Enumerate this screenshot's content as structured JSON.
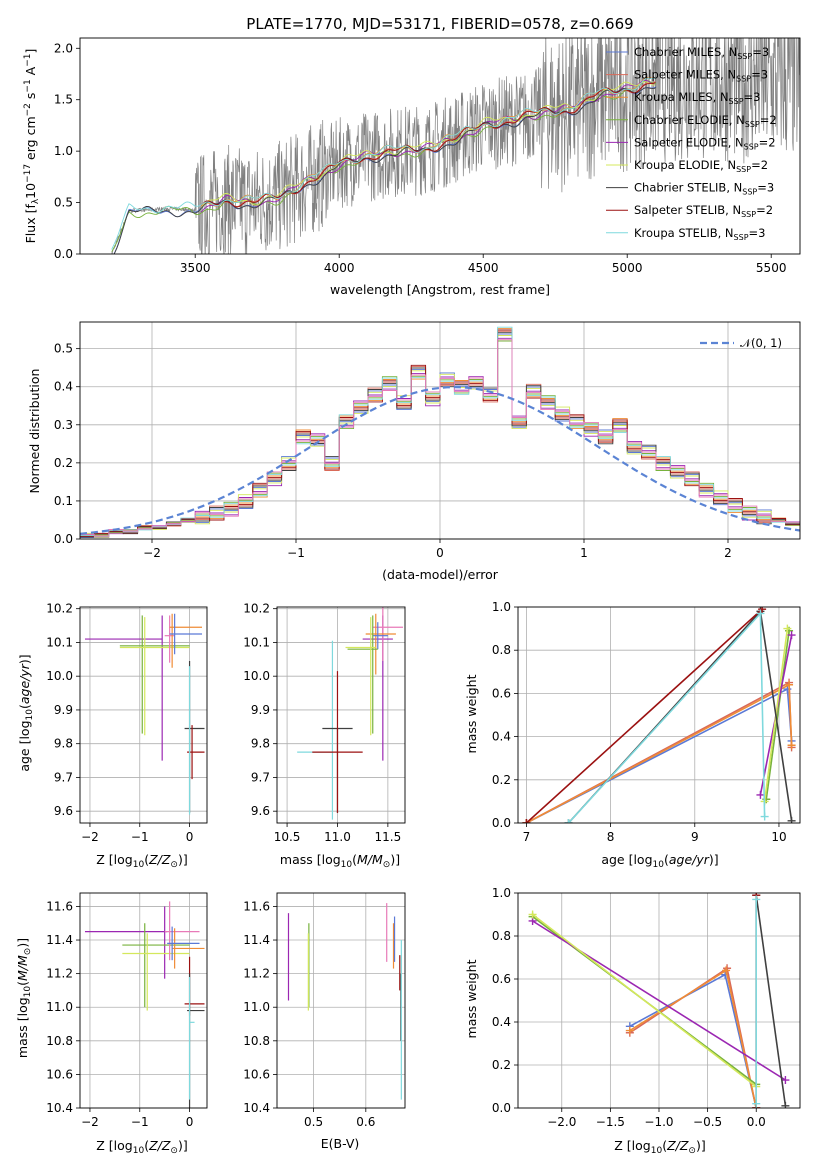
{
  "figure": {
    "title": "PLATE=1770, MJD=53171, FIBERID=0578, z=0.669"
  },
  "chart_data": [
    {
      "type": "line",
      "panel": "spectrum",
      "xlabel": "wavelength [Angstrom, rest frame]",
      "ylabel": "Flux [f_λ 10^-17 erg cm^-2 s^-1 A^-1]",
      "xlim": [
        3100,
        5600
      ],
      "ylim": [
        0,
        2.1
      ],
      "xticks": [
        "3500",
        "4000",
        "4500",
        "5000",
        "5500"
      ],
      "yticks": [
        "0.0",
        "0.5",
        "1.0",
        "1.5",
        "2.0"
      ],
      "grid": false,
      "legend_position": "top-right",
      "data_color": "#808080",
      "data_x_range": [
        3210,
        5600
      ],
      "model_trend": {
        "x": [
          3210,
          3270,
          3400,
          3500,
          3600,
          3700,
          3800,
          3900,
          3950,
          4000,
          4100,
          4200,
          4300,
          4400,
          4500,
          4600,
          4700,
          4800,
          4900,
          5000,
          5100
        ],
        "y": [
          0.0,
          0.42,
          0.44,
          0.43,
          0.52,
          0.5,
          0.56,
          0.72,
          0.78,
          0.88,
          0.95,
          1.0,
          1.02,
          1.12,
          1.25,
          1.3,
          1.38,
          1.4,
          1.55,
          1.6,
          1.68
        ]
      },
      "legend": [
        {
          "label": "Chabrier MILES, N",
          "sub": "SSP",
          "suffix": "=3",
          "color": "#5b79d6"
        },
        {
          "label": "Salpeter MILES, N",
          "sub": "SSP",
          "suffix": "=3",
          "color": "#d96a59"
        },
        {
          "label": "Kroupa MILES, N",
          "sub": "SSP",
          "suffix": "=3",
          "color": "#ef8c36"
        },
        {
          "label": "Chabrier ELODIE, N",
          "sub": "SSP",
          "suffix": "=2",
          "color": "#78b23d"
        },
        {
          "label": "Salpeter ELODIE, N",
          "sub": "SSP",
          "suffix": "=2",
          "color": "#9b27b2"
        },
        {
          "label": "Kroupa ELODIE, N",
          "sub": "SSP",
          "suffix": "=2",
          "color": "#d4e85c"
        },
        {
          "label": "Chabrier STELIB, N",
          "sub": "SSP",
          "suffix": "=3",
          "color": "#404040"
        },
        {
          "label": "Salpeter STELIB, N",
          "sub": "SSP",
          "suffix": "=2",
          "color": "#9b1111"
        },
        {
          "label": "Kroupa STELIB, N",
          "sub": "SSP",
          "suffix": "=3",
          "color": "#7fd9dd"
        }
      ]
    },
    {
      "type": "line",
      "panel": "residuals",
      "xlabel": "(data-model)/error",
      "ylabel": "Normed distribution",
      "xlim": [
        -2.5,
        2.5
      ],
      "ylim": [
        0,
        0.57
      ],
      "xticks": [
        "−2",
        "−1",
        "0",
        "1",
        "2"
      ],
      "yticks": [
        "0.0",
        "0.1",
        "0.2",
        "0.3",
        "0.4",
        "0.5"
      ],
      "grid": true,
      "legend_position": "top-right",
      "gaussian_label": "𝒩(0, 1)",
      "gaussian_color": "#5b84d4",
      "bin_edges": [
        -2.5,
        -2.4,
        -2.3,
        -2.2,
        -2.1,
        -2.0,
        -1.9,
        -1.8,
        -1.7,
        -1.6,
        -1.5,
        -1.4,
        -1.3,
        -1.2,
        -1.1,
        -1.0,
        -0.9,
        -0.8,
        -0.7,
        -0.6,
        -0.5,
        -0.4,
        -0.3,
        -0.2,
        -0.1,
        0.0,
        0.1,
        0.2,
        0.3,
        0.4,
        0.5,
        0.6,
        0.7,
        0.8,
        0.9,
        1.0,
        1.1,
        1.2,
        1.3,
        1.4,
        1.5,
        1.6,
        1.7,
        1.8,
        1.9,
        2.0,
        2.1,
        2.2,
        2.3,
        2.4,
        2.5
      ],
      "histogram": [
        0.01,
        0.01,
        0.02,
        0.02,
        0.03,
        0.03,
        0.04,
        0.05,
        0.06,
        0.07,
        0.08,
        0.1,
        0.13,
        0.16,
        0.2,
        0.27,
        0.26,
        0.2,
        0.31,
        0.35,
        0.38,
        0.41,
        0.36,
        0.44,
        0.37,
        0.42,
        0.4,
        0.41,
        0.38,
        0.54,
        0.31,
        0.39,
        0.36,
        0.33,
        0.31,
        0.29,
        0.27,
        0.3,
        0.24,
        0.23,
        0.2,
        0.18,
        0.16,
        0.13,
        0.11,
        0.09,
        0.07,
        0.06,
        0.05,
        0.04
      ],
      "series_colors": [
        "#5b79d6",
        "#d96a59",
        "#ef8c36",
        "#78b23d",
        "#9b27b2",
        "#d4e85c",
        "#404040",
        "#9b1111",
        "#7fd9dd",
        "#e87ab8"
      ]
    },
    {
      "type": "scatter",
      "panel": "age-vs-metallicity",
      "xlabel": "Z [log10(Z/Z⊙)]",
      "ylabel": "age [log10(age/yr)]",
      "xlim": [
        -2.2,
        0.35
      ],
      "ylim": [
        9.565,
        10.205
      ],
      "xticks": [
        "−2",
        "−1",
        "0"
      ],
      "yticks": [
        "9.6",
        "9.7",
        "9.8",
        "9.9",
        "10.0",
        "10.1",
        "10.2"
      ],
      "grid": true,
      "errorbars": [
        {
          "color": "#9b27b2",
          "x": -0.55,
          "xerr": [
            1.55,
            0.0
          ],
          "y": 10.11,
          "yerr": [
            0.36,
            0.07
          ]
        },
        {
          "color": "#78b23d",
          "x": -0.95,
          "xerr": [
            0.45,
            0.95
          ],
          "y": 10.09,
          "yerr": [
            0.26,
            0.09
          ]
        },
        {
          "color": "#d4e85c",
          "x": -0.9,
          "xerr": [
            0.5,
            0.9
          ],
          "y": 10.085,
          "yerr": [
            0.26,
            0.09
          ]
        },
        {
          "color": "#e87ab8",
          "x": -0.4,
          "xerr": [
            0.1,
            0.1
          ],
          "y": 10.12,
          "yerr": [
            0.08,
            0.06
          ]
        },
        {
          "color": "#ef8c36",
          "x": -0.35,
          "xerr": [
            0.05,
            0.6
          ],
          "y": 10.145,
          "yerr": [
            0.12,
            0.04
          ]
        },
        {
          "color": "#5b79d6",
          "x": -0.3,
          "xerr": [
            0.1,
            0.55
          ],
          "y": 10.125,
          "yerr": [
            0.06,
            0.06
          ]
        },
        {
          "color": "#404040",
          "x": 0.0,
          "xerr": [
            0.1,
            0.3
          ],
          "y": 9.845,
          "yerr": [
            0.25,
            0.2
          ]
        },
        {
          "color": "#9b1111",
          "x": 0.05,
          "xerr": [
            0.1,
            0.25
          ],
          "y": 9.775,
          "yerr": [
            0.08,
            0.08
          ]
        },
        {
          "color": "#7fd9dd",
          "x": 0.0,
          "xerr": [
            0.0,
            0.0
          ],
          "y": 9.75,
          "yerr": [
            0.16,
            0.28
          ]
        }
      ]
    },
    {
      "type": "scatter",
      "panel": "age-vs-mass",
      "xlabel": "mass [log10(M/M⊙)]",
      "ylabel": "",
      "xlim": [
        10.4,
        11.67
      ],
      "ylim": [
        9.565,
        10.205
      ],
      "xticks": [
        "10.5",
        "11.0",
        "11.5"
      ],
      "yticks": [
        "9.6",
        "9.7",
        "9.8",
        "9.9",
        "10.0",
        "10.1",
        "10.2"
      ],
      "grid": true,
      "errorbars": [
        {
          "color": "#9b27b2",
          "x": 11.45,
          "xerr": [
            0.2,
            0.1
          ],
          "y": 10.11,
          "yerr": [
            0.36,
            0.07
          ]
        },
        {
          "color": "#e87ab8",
          "x": 11.45,
          "xerr": [
            0.1,
            0.2
          ],
          "y": 10.145,
          "yerr": [
            0.1,
            0.06
          ]
        },
        {
          "color": "#ef8c36",
          "x": 11.38,
          "xerr": [
            0.1,
            0.2
          ],
          "y": 10.125,
          "yerr": [
            0.12,
            0.06
          ]
        },
        {
          "color": "#5b79d6",
          "x": 11.4,
          "xerr": [
            0.05,
            0.1
          ],
          "y": 10.12,
          "yerr": [
            0.04,
            0.04
          ]
        },
        {
          "color": "#78b23d",
          "x": 11.35,
          "xerr": [
            0.25,
            0.05
          ],
          "y": 10.08,
          "yerr": [
            0.25,
            0.1
          ]
        },
        {
          "color": "#d4e85c",
          "x": 11.33,
          "xerr": [
            0.25,
            0.05
          ],
          "y": 10.085,
          "yerr": [
            0.26,
            0.09
          ]
        },
        {
          "color": "#7fd9dd",
          "x": 10.95,
          "xerr": [
            0.35,
            0.0
          ],
          "y": 9.775,
          "yerr": [
            0.2,
            0.33
          ]
        },
        {
          "color": "#404040",
          "x": 11.0,
          "xerr": [
            0.15,
            0.15
          ],
          "y": 9.845,
          "yerr": [
            0.25,
            0.0
          ]
        },
        {
          "color": "#9b1111",
          "x": 11.0,
          "xerr": [
            0.25,
            0.25
          ],
          "y": 9.775,
          "yerr": [
            0.18,
            0.24
          ]
        }
      ]
    },
    {
      "type": "line",
      "panel": "mass-weight-vs-age",
      "xlabel": "age [log10(age/yr)]",
      "ylabel": "mass weight",
      "xlim": [
        6.9,
        10.25
      ],
      "ylim": [
        0,
        1
      ],
      "xticks": [
        "7",
        "8",
        "9",
        "10"
      ],
      "yticks": [
        "0.0",
        "0.2",
        "0.4",
        "0.6",
        "0.8",
        "1.0"
      ],
      "grid": true,
      "series": [
        {
          "color": "#5b79d6",
          "x": [
            7.0,
            10.1,
            10.15
          ],
          "y": [
            0.0,
            0.62,
            0.38
          ]
        },
        {
          "color": "#d96a59",
          "x": [
            7.0,
            10.12,
            10.15
          ],
          "y": [
            0.0,
            0.65,
            0.35
          ]
        },
        {
          "color": "#ef8c36",
          "x": [
            7.0,
            10.12,
            10.15
          ],
          "y": [
            0.0,
            0.64,
            0.36
          ]
        },
        {
          "color": "#78b23d",
          "x": [
            9.85,
            10.12
          ],
          "y": [
            0.11,
            0.89
          ]
        },
        {
          "color": "#9b27b2",
          "x": [
            9.78,
            10.15
          ],
          "y": [
            0.13,
            0.87
          ]
        },
        {
          "color": "#d4e85c",
          "x": [
            9.83,
            10.1
          ],
          "y": [
            0.1,
            0.9
          ]
        },
        {
          "color": "#404040",
          "x": [
            7.5,
            9.78,
            10.15
          ],
          "y": [
            0.0,
            0.98,
            0.01
          ]
        },
        {
          "color": "#9b1111",
          "x": [
            7.0,
            9.8
          ],
          "y": [
            0.0,
            0.99
          ]
        },
        {
          "color": "#7fd9dd",
          "x": [
            7.5,
            9.78,
            9.83
          ],
          "y": [
            0.0,
            0.97,
            0.03
          ]
        }
      ]
    },
    {
      "type": "scatter",
      "panel": "mass-vs-metallicity",
      "xlabel": "Z [log10(Z/Z⊙)]",
      "ylabel": "mass [log10(M/M⊙)]",
      "xlim": [
        -2.2,
        0.35
      ],
      "ylim": [
        10.4,
        11.68
      ],
      "xticks": [
        "−2",
        "−1",
        "0"
      ],
      "yticks": [
        "10.4",
        "10.6",
        "10.8",
        "11.0",
        "11.2",
        "11.4",
        "11.6"
      ],
      "grid": true,
      "errorbars": [
        {
          "color": "#9b27b2",
          "x": -0.5,
          "xerr": [
            1.6,
            0.05
          ],
          "y": 11.45,
          "yerr": [
            0.28,
            0.15
          ]
        },
        {
          "color": "#78b23d",
          "x": -0.9,
          "xerr": [
            0.45,
            0.9
          ],
          "y": 11.37,
          "yerr": [
            0.37,
            0.13
          ]
        },
        {
          "color": "#d4e85c",
          "x": -0.85,
          "xerr": [
            0.5,
            0.85
          ],
          "y": 11.32,
          "yerr": [
            0.34,
            0.12
          ]
        },
        {
          "color": "#e87ab8",
          "x": -0.4,
          "xerr": [
            0.1,
            0.6
          ],
          "y": 11.45,
          "yerr": [
            0.17,
            0.18
          ]
        },
        {
          "color": "#ef8c36",
          "x": -0.3,
          "xerr": [
            0.05,
            0.6
          ],
          "y": 11.35,
          "yerr": [
            0.12,
            0.12
          ]
        },
        {
          "color": "#5b79d6",
          "x": -0.35,
          "xerr": [
            0.1,
            0.55
          ],
          "y": 11.38,
          "yerr": [
            0.1,
            0.1
          ]
        },
        {
          "color": "#9b1111",
          "x": 0.0,
          "xerr": [
            0.1,
            0.3
          ],
          "y": 11.02,
          "yerr": [
            0.07,
            0.28
          ]
        },
        {
          "color": "#404040",
          "x": 0.0,
          "xerr": [
            0.05,
            0.3
          ],
          "y": 10.98,
          "yerr": [
            0.58,
            0.22
          ]
        },
        {
          "color": "#7fd9dd",
          "x": 0.0,
          "xerr": [
            0.0,
            0.1
          ],
          "y": 10.91,
          "yerr": [
            0.46,
            0.27
          ]
        }
      ]
    },
    {
      "type": "scatter",
      "panel": "mass-vs-extinction",
      "xlabel": "E(B-V)",
      "ylabel": "",
      "xlim": [
        0.43,
        0.675
      ],
      "ylim": [
        10.4,
        11.68
      ],
      "xticks": [
        "0.5",
        "0.6"
      ],
      "yticks": [
        "10.4",
        "10.6",
        "10.8",
        "11.0",
        "11.2",
        "11.4",
        "11.6"
      ],
      "grid": true,
      "errorbars": [
        {
          "color": "#9b27b2",
          "x": 0.452,
          "y": 11.3,
          "yerr": [
            0.26,
            0.26
          ]
        },
        {
          "color": "#78b23d",
          "x": 0.491,
          "y": 11.26,
          "yerr": [
            0.26,
            0.24
          ]
        },
        {
          "color": "#d4e85c",
          "x": 0.49,
          "y": 11.2,
          "yerr": [
            0.22,
            0.24
          ]
        },
        {
          "color": "#e87ab8",
          "x": 0.64,
          "y": 11.45,
          "yerr": [
            0.18,
            0.17
          ]
        },
        {
          "color": "#ef8c36",
          "x": 0.653,
          "y": 11.35,
          "yerr": [
            0.12,
            0.15
          ]
        },
        {
          "color": "#5b79d6",
          "x": 0.655,
          "y": 11.37,
          "yerr": [
            0.1,
            0.17
          ]
        },
        {
          "color": "#9b1111",
          "x": 0.665,
          "y": 11.2,
          "yerr": [
            0.1,
            0.11
          ]
        },
        {
          "color": "#404040",
          "x": 0.667,
          "y": 11.0,
          "yerr": [
            0.2,
            0.2
          ]
        },
        {
          "color": "#7fd9dd",
          "x": 0.668,
          "y": 10.95,
          "yerr": [
            0.5,
            0.45
          ]
        }
      ]
    },
    {
      "type": "line",
      "panel": "mass-weight-vs-metallicity",
      "xlabel": "Z [log10(Z/Z⊙)]",
      "ylabel": "mass weight",
      "xlim": [
        -2.45,
        0.45
      ],
      "ylim": [
        0,
        1
      ],
      "xticks": [
        "−2.0",
        "−1.5",
        "−1.0",
        "−0.5",
        "0.0"
      ],
      "yticks": [
        "0.0",
        "0.2",
        "0.4",
        "0.6",
        "0.8",
        "1.0"
      ],
      "grid": true,
      "series": [
        {
          "color": "#5b79d6",
          "x": [
            -1.3,
            -0.32,
            0.0
          ],
          "y": [
            0.38,
            0.62,
            0.0
          ]
        },
        {
          "color": "#d96a59",
          "x": [
            -1.3,
            -0.3,
            0.0
          ],
          "y": [
            0.35,
            0.65,
            0.0
          ]
        },
        {
          "color": "#ef8c36",
          "x": [
            -1.3,
            -0.31,
            0.0
          ],
          "y": [
            0.36,
            0.64,
            0.0
          ]
        },
        {
          "color": "#78b23d",
          "x": [
            -2.3,
            0.0
          ],
          "y": [
            0.89,
            0.11
          ]
        },
        {
          "color": "#9b27b2",
          "x": [
            -2.3,
            0.3
          ],
          "y": [
            0.87,
            0.13
          ]
        },
        {
          "color": "#d4e85c",
          "x": [
            -2.3,
            0.0
          ],
          "y": [
            0.9,
            0.1
          ]
        },
        {
          "color": "#404040",
          "x": [
            0.0,
            0.3
          ],
          "y": [
            0.99,
            0.01
          ]
        },
        {
          "color": "#9b1111",
          "x": [
            0.0,
            0.0
          ],
          "y": [
            0.99,
            0.0
          ]
        },
        {
          "color": "#7fd9dd",
          "x": [
            0.0,
            0.0
          ],
          "y": [
            0.97,
            0.02
          ]
        }
      ]
    }
  ]
}
